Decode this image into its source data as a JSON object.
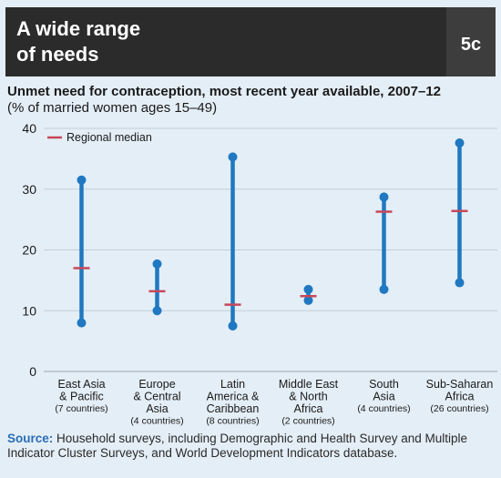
{
  "header": {
    "title_line1": "A wide range",
    "title_line2": "of needs",
    "badge": "5c"
  },
  "subtitle": "Unmet need for contraception, most recent year available, 2007–12",
  "unit": "(% of married women ages 15–49)",
  "source": {
    "label": "Source:",
    "text": "Household surveys, including Demographic and Health Survey and Multiple Indicator Cluster Surveys, and World Development Indicators database."
  },
  "colors": {
    "range": "#1f78c1",
    "median": "#c8475a"
  },
  "chart_data": {
    "type": "range",
    "ylim": [
      0,
      40
    ],
    "yticks": [
      0,
      10,
      20,
      30,
      40
    ],
    "legend": {
      "label": "Regional median",
      "position": "top-left"
    },
    "grid": "horizontal",
    "categories": [
      {
        "lines": [
          "East Asia",
          "& Pacific"
        ],
        "note": "(7 countries)",
        "min": 8.0,
        "max": 31.5,
        "median": 17.0
      },
      {
        "lines": [
          "Europe",
          "& Central",
          "Asia"
        ],
        "note": "(4 countries)",
        "min": 10.0,
        "max": 17.7,
        "median": 13.2
      },
      {
        "lines": [
          "Latin",
          "America &",
          "Caribbean"
        ],
        "note": "(8 countries)",
        "min": 7.5,
        "max": 35.3,
        "median": 11.0
      },
      {
        "lines": [
          "Middle East",
          "& North",
          "Africa"
        ],
        "note": "(2 countries)",
        "min": 11.7,
        "max": 13.5,
        "median": 12.4
      },
      {
        "lines": [
          "South",
          "Asia"
        ],
        "note": "(4 countries)",
        "min": 13.5,
        "max": 28.7,
        "median": 26.3
      },
      {
        "lines": [
          "Sub-Saharan",
          "Africa"
        ],
        "note": "(26 countries)",
        "min": 14.6,
        "max": 37.6,
        "median": 26.4
      }
    ]
  }
}
